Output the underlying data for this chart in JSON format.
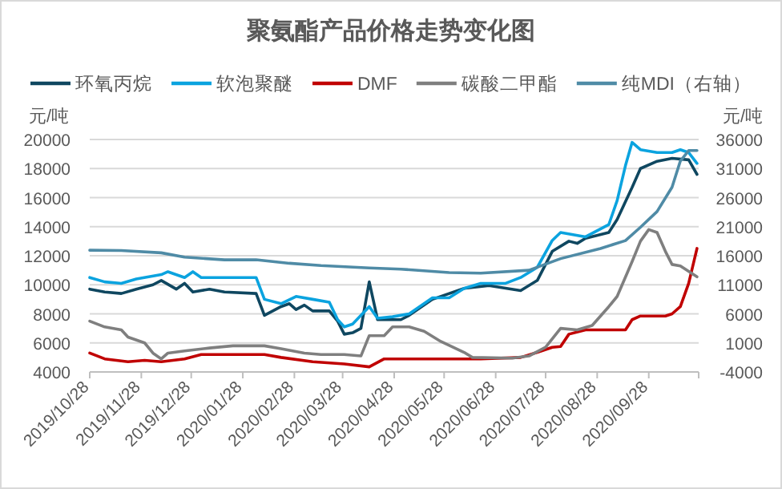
{
  "chart_data": {
    "type": "line",
    "title": "聚氨酯产品价格走势变化图",
    "ylabel": "元/吨",
    "y2label": "元/吨",
    "xlim": [
      "2019-10-28",
      "2020-10-28"
    ],
    "xticks": [
      {
        "value": "2019-10-28",
        "label": "2019/10/28"
      },
      {
        "value": "2019-11-28",
        "label": "2019/11/28"
      },
      {
        "value": "2019-12-28",
        "label": "2019/12/28"
      },
      {
        "value": "2020-01-28",
        "label": "2020/01/28"
      },
      {
        "value": "2020-02-28",
        "label": "2020/02/28"
      },
      {
        "value": "2020-03-28",
        "label": "2020/03/28"
      },
      {
        "value": "2020-04-28",
        "label": "2020/04/28"
      },
      {
        "value": "2020-05-28",
        "label": "2020/05/28"
      },
      {
        "value": "2020-06-28",
        "label": "2020/06/28"
      },
      {
        "value": "2020-07-28",
        "label": "2020/07/28"
      },
      {
        "value": "2020-08-28",
        "label": "2020/08/28"
      },
      {
        "value": "2020-09-28",
        "label": "2020/09/28"
      },
      {
        "value": "2020-10-28",
        "label": null
      }
    ],
    "ylim": [
      4000,
      20000
    ],
    "yticks": [
      4000,
      6000,
      8000,
      10000,
      12000,
      14000,
      16000,
      18000,
      20000
    ],
    "y2lim": [
      -4000,
      36000
    ],
    "y2ticks": [
      -4000,
      1000,
      6000,
      11000,
      16000,
      21000,
      26000,
      31000,
      36000
    ],
    "grid": "y",
    "legend": "top",
    "series": [
      {
        "name": "环氧丙烷",
        "color": "#0f4760",
        "x": [
          "2019-10-28",
          "2019-11-06",
          "2019-11-16",
          "2019-11-25",
          "2019-12-05",
          "2019-12-10",
          "2019-12-19",
          "2019-12-24",
          "2019-12-29",
          "2020-01-08",
          "2020-01-17",
          "2020-02-05",
          "2020-02-10",
          "2020-02-20",
          "2020-02-25",
          "2020-02-29",
          "2020-03-05",
          "2020-03-10",
          "2020-03-20",
          "2020-03-25",
          "2020-03-29",
          "2020-04-03",
          "2020-04-08",
          "2020-04-13",
          "2020-04-18",
          "2020-04-27",
          "2020-05-02",
          "2020-05-07",
          "2020-05-21",
          "2020-06-09",
          "2020-06-24",
          "2020-07-13",
          "2020-07-23",
          "2020-08-01",
          "2020-08-11",
          "2020-08-16",
          "2020-08-21",
          "2020-09-04",
          "2020-09-09",
          "2020-09-18",
          "2020-09-23",
          "2020-10-03",
          "2020-10-12",
          "2020-10-22",
          "2020-10-27"
        ],
        "values": [
          9700,
          9500,
          9400,
          9700,
          10000,
          10300,
          9700,
          10100,
          9500,
          9700,
          9500,
          9400,
          7900,
          8500,
          8700,
          8300,
          8600,
          8200,
          8200,
          7500,
          6600,
          6700,
          7000,
          10200,
          7600,
          7600,
          7600,
          7900,
          9000,
          9750,
          9950,
          9600,
          10300,
          12300,
          13000,
          12850,
          13200,
          13600,
          14500,
          16700,
          18000,
          18500,
          18700,
          18600,
          17600
        ]
      },
      {
        "name": "软泡聚醚",
        "color": "#0ba3df",
        "x": [
          "2019-10-28",
          "2019-11-06",
          "2019-11-16",
          "2019-11-25",
          "2019-12-10",
          "2019-12-14",
          "2019-12-24",
          "2019-12-29",
          "2020-01-03",
          "2020-01-17",
          "2020-02-05",
          "2020-02-10",
          "2020-02-20",
          "2020-02-29",
          "2020-03-10",
          "2020-03-20",
          "2020-03-25",
          "2020-03-29",
          "2020-04-03",
          "2020-04-13",
          "2020-04-18",
          "2020-04-27",
          "2020-05-07",
          "2020-05-21",
          "2020-05-31",
          "2020-06-09",
          "2020-06-19",
          "2020-07-04",
          "2020-07-13",
          "2020-07-23",
          "2020-08-01",
          "2020-08-06",
          "2020-08-21",
          "2020-09-04",
          "2020-09-09",
          "2020-09-14",
          "2020-09-18",
          "2020-09-23",
          "2020-10-03",
          "2020-10-12",
          "2020-10-17",
          "2020-10-22",
          "2020-10-27"
        ],
        "values": [
          10500,
          10200,
          10100,
          10400,
          10700,
          10900,
          10500,
          10900,
          10500,
          10500,
          10500,
          9000,
          8700,
          9200,
          9000,
          8800,
          7600,
          7100,
          7300,
          8500,
          7700,
          7800,
          8000,
          9100,
          9100,
          9750,
          10100,
          10100,
          10500,
          11200,
          13050,
          13600,
          13300,
          14150,
          15800,
          18200,
          19800,
          19300,
          19100,
          19100,
          19300,
          19100,
          18350
        ]
      },
      {
        "name": "DMF",
        "color": "#c00000",
        "x": [
          "2019-10-28",
          "2019-11-06",
          "2019-11-20",
          "2019-11-30",
          "2019-12-10",
          "2019-12-24",
          "2020-01-03",
          "2020-02-10",
          "2020-02-20",
          "2020-03-10",
          "2020-03-29",
          "2020-04-13",
          "2020-04-22",
          "2020-05-02",
          "2020-06-19",
          "2020-07-13",
          "2020-07-23",
          "2020-08-01",
          "2020-08-06",
          "2020-08-11",
          "2020-08-21",
          "2020-09-14",
          "2020-09-18",
          "2020-09-23",
          "2020-10-08",
          "2020-10-12",
          "2020-10-17",
          "2020-10-22",
          "2020-10-27"
        ],
        "values": [
          5300,
          4900,
          4700,
          4800,
          4700,
          4900,
          5200,
          5200,
          5000,
          4700,
          4550,
          4350,
          4900,
          4900,
          4900,
          5000,
          5350,
          5700,
          5750,
          6600,
          6900,
          6900,
          7600,
          7850,
          7850,
          8000,
          8500,
          10100,
          12500
        ]
      },
      {
        "name": "碳酸二甲酯",
        "color": "#7f7f7f",
        "x": [
          "2019-10-28",
          "2019-11-06",
          "2019-11-16",
          "2019-11-20",
          "2019-11-30",
          "2019-12-05",
          "2019-12-10",
          "2019-12-14",
          "2019-12-24",
          "2020-01-08",
          "2020-01-22",
          "2020-02-10",
          "2020-02-20",
          "2020-03-05",
          "2020-03-15",
          "2020-03-29",
          "2020-04-08",
          "2020-04-13",
          "2020-04-22",
          "2020-04-27",
          "2020-05-07",
          "2020-05-16",
          "2020-05-26",
          "2020-06-09",
          "2020-06-14",
          "2020-07-08",
          "2020-07-18",
          "2020-07-28",
          "2020-08-06",
          "2020-08-16",
          "2020-08-25",
          "2020-09-04",
          "2020-09-09",
          "2020-09-18",
          "2020-09-23",
          "2020-09-28",
          "2020-10-03",
          "2020-10-08",
          "2020-10-12",
          "2020-10-17",
          "2020-10-27"
        ],
        "values": [
          7500,
          7100,
          6900,
          6400,
          6000,
          5300,
          4900,
          5300,
          5450,
          5650,
          5800,
          5800,
          5600,
          5300,
          5200,
          5200,
          5100,
          6500,
          6500,
          7100,
          7100,
          6800,
          6100,
          5350,
          5000,
          4950,
          5100,
          5700,
          7000,
          6900,
          7200,
          8500,
          9200,
          11600,
          13000,
          13800,
          13600,
          12300,
          11400,
          11300,
          10550
        ]
      },
      {
        "name": "纯MDI（右轴）",
        "color": "#4f8ba6",
        "axis": "y2",
        "x": [
          "2019-10-28",
          "2019-11-16",
          "2019-12-10",
          "2019-12-24",
          "2020-01-17",
          "2020-02-05",
          "2020-02-25",
          "2020-03-15",
          "2020-04-13",
          "2020-05-02",
          "2020-05-31",
          "2020-06-19",
          "2020-07-18",
          "2020-08-06",
          "2020-08-30",
          "2020-09-14",
          "2020-09-23",
          "2020-10-03",
          "2020-10-12",
          "2020-10-17",
          "2020-10-22",
          "2020-10-27"
        ],
        "values": [
          16950,
          16900,
          16500,
          15750,
          15300,
          15300,
          14700,
          14300,
          13900,
          13700,
          13100,
          13000,
          13500,
          15500,
          17250,
          18600,
          20900,
          23600,
          27800,
          32300,
          34100,
          34100
        ]
      }
    ]
  }
}
